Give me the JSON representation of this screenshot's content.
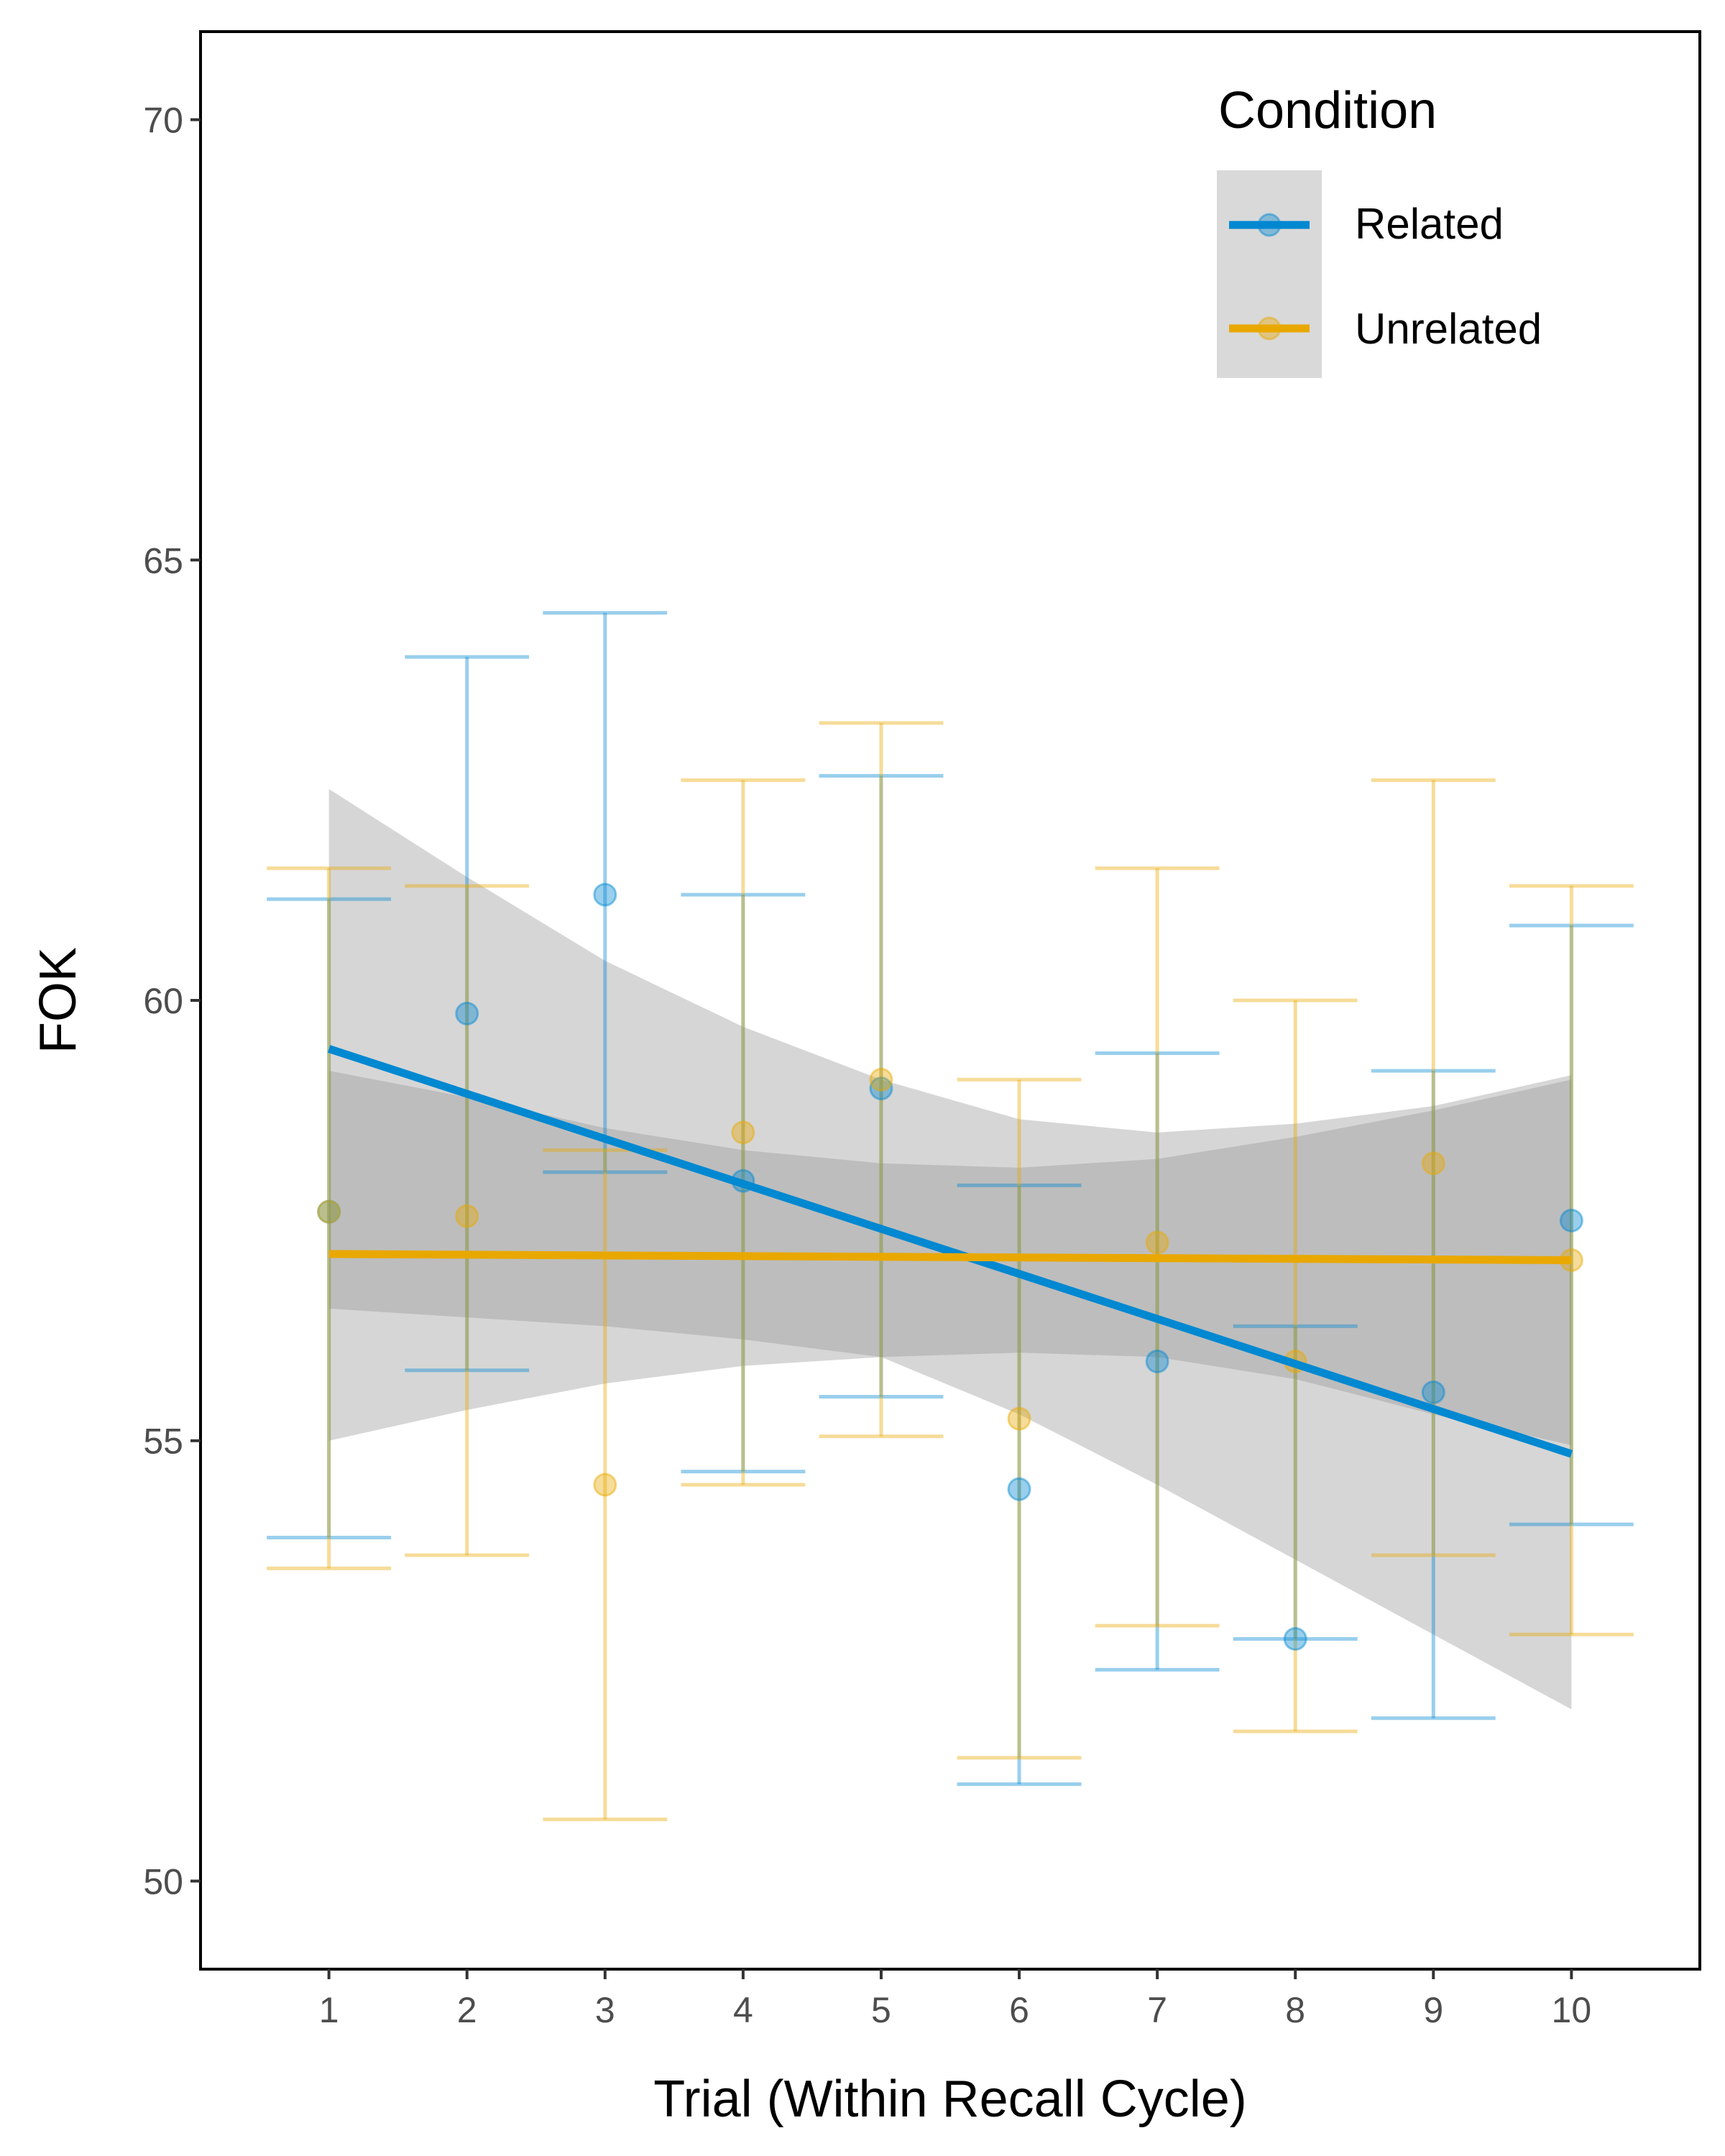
{
  "chart_data": {
    "type": "scatter",
    "xlabel": "Trial (Within Recall Cycle)",
    "ylabel": "FOK",
    "xlim": [
      0.07,
      10.93
    ],
    "ylim": [
      49.0,
      71.0
    ],
    "x_ticks": [
      1,
      2,
      3,
      4,
      5,
      6,
      7,
      8,
      9,
      10
    ],
    "y_ticks": [
      50,
      55,
      60,
      65,
      70
    ],
    "grid": false,
    "legend": {
      "title": "Condition",
      "placement": "top-right",
      "entries": [
        "Related",
        "Unrelated"
      ]
    },
    "series": [
      {
        "name": "Related",
        "color": "#0088d1",
        "x": [
          1,
          2,
          3,
          4,
          5,
          6,
          7,
          8,
          9,
          10
        ],
        "means": [
          57.6,
          59.85,
          61.2,
          57.95,
          59.0,
          54.45,
          55.9,
          52.75,
          55.55,
          57.5
        ],
        "error_upper": [
          61.15,
          63.9,
          64.4,
          61.2,
          62.55,
          57.9,
          59.4,
          56.3,
          59.2,
          60.85
        ],
        "error_lower": [
          53.9,
          55.8,
          58.05,
          54.65,
          55.5,
          51.1,
          52.4,
          52.75,
          51.85,
          54.05
        ],
        "trend": {
          "x": [
            1,
            10
          ],
          "y": [
            59.45,
            54.85
          ]
        },
        "ci_upper": [
          62.4,
          61.4,
          60.45,
          59.7,
          59.1,
          58.65,
          58.5,
          58.6,
          58.8,
          59.15
        ],
        "ci_lower": [
          56.5,
          56.4,
          56.3,
          56.15,
          55.95,
          55.3,
          54.5,
          53.65,
          52.8,
          51.95
        ]
      },
      {
        "name": "Unrelated",
        "color": "#e9a800",
        "x": [
          1,
          2,
          3,
          4,
          5,
          6,
          7,
          8,
          9,
          10
        ],
        "means": [
          57.6,
          57.55,
          54.5,
          58.5,
          59.1,
          55.25,
          57.25,
          55.9,
          58.15,
          57.05
        ],
        "error_upper": [
          61.5,
          61.3,
          58.3,
          62.5,
          63.15,
          59.1,
          61.5,
          60.0,
          62.5,
          61.3
        ],
        "error_lower": [
          53.55,
          53.7,
          50.7,
          54.5,
          55.05,
          51.4,
          52.9,
          51.7,
          53.7,
          52.8
        ],
        "trend": {
          "x": [
            1,
            10
          ],
          "y": [
            57.12,
            57.05
          ]
        },
        "ci_upper": [
          59.2,
          58.9,
          58.55,
          58.3,
          58.15,
          58.1,
          58.2,
          58.45,
          58.75,
          59.1
        ],
        "ci_lower": [
          55.0,
          55.35,
          55.65,
          55.85,
          55.95,
          56.0,
          55.95,
          55.7,
          55.3,
          54.95
        ]
      }
    ]
  }
}
